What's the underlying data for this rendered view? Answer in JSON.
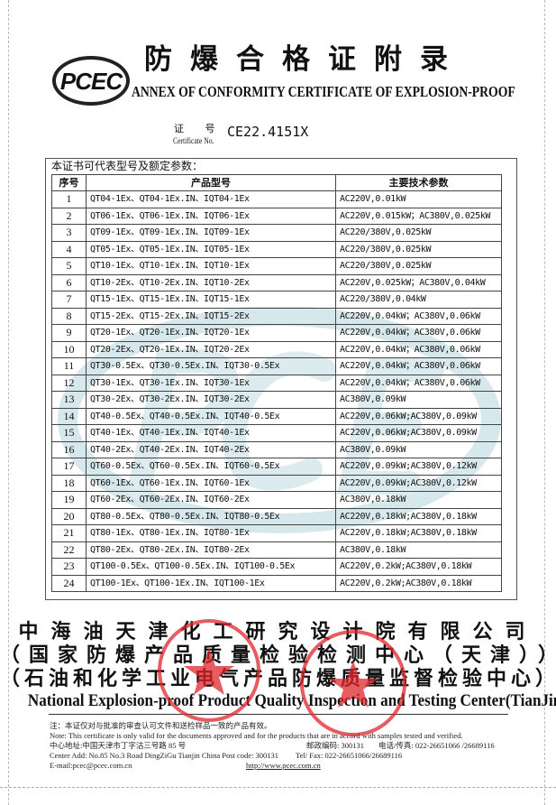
{
  "header": {
    "logo_text": "PCEC",
    "title_cn": "防爆合格证附录",
    "title_en": "ANNEX OF CONFORMITY CERTIFICATE OF EXPLOSION-PROOF",
    "cert_no_label_cn": "证 号",
    "cert_no_label_en": "Certificate No.",
    "cert_no": "CE22.4151X"
  },
  "table": {
    "caption": "本证书可代表型号及额定参数：",
    "columns": [
      "序号",
      "产品型号",
      "主要技术参数"
    ],
    "rows": [
      {
        "no": "1",
        "model": "QT04-1Ex、QT04-1Ex.IN、IQT04-1Ex",
        "params": "AC220V,0.01kW"
      },
      {
        "no": "2",
        "model": "QT06-1Ex、QT06-1Ex.IN、IQT06-1Ex",
        "params": "AC220V,0.015kW；AC380V,0.025kW"
      },
      {
        "no": "3",
        "model": "QT09-1Ex、QT09-1Ex.IN、IQT09-1Ex",
        "params": "AC220/380V,0.025kW"
      },
      {
        "no": "4",
        "model": "QT05-1Ex、QT05-1Ex.IN、IQT05-1Ex",
        "params": "AC220/380V,0.025kW"
      },
      {
        "no": "5",
        "model": "QT10-1Ex、QT10-1Ex.IN、IQT10-1Ex",
        "params": "AC220/380V,0.025kW"
      },
      {
        "no": "6",
        "model": "QT10-2Ex、QT10-2Ex.IN、IQT10-2Ex",
        "params": "AC220V,0.025kW；AC380V,0.04kW"
      },
      {
        "no": "7",
        "model": "QT15-1Ex、QT15-1Ex.IN、IQT15-1Ex",
        "params": "AC220/380V,0.04kW"
      },
      {
        "no": "8",
        "model": "QT15-2Ex、QT15-2Ex.IN、IQT15-2Ex",
        "params": "AC220V,0.04kW；AC380V,0.06kW"
      },
      {
        "no": "9",
        "model": "QT20-1Ex、QT20-1Ex.IN、IQT20-1Ex",
        "params": "AC220V,0.04kW；AC380V,0.06kW"
      },
      {
        "no": "10",
        "model": "QT20-2Ex、QT20-1Ex.IN、IQT20-2Ex",
        "params": "AC220V,0.04kW；AC380V,0.06kW"
      },
      {
        "no": "11",
        "model": "QT30-0.5Ex、QT30-0.5Ex.IN、IQT30-0.5Ex",
        "params": "AC220V,0.04kW；AC380V,0.06kW"
      },
      {
        "no": "12",
        "model": "QT30-1Ex、QT30-1Ex.IN、IQT30-1Ex",
        "params": "AC220V,0.04kW；AC380V,0.06kW"
      },
      {
        "no": "13",
        "model": "QT30-2Ex、QT30-2Ex.IN、IQT30-2Ex",
        "params": "AC380V,0.09kW"
      },
      {
        "no": "14",
        "model": "QT40-0.5Ex、QT40-0.5Ex.IN、IQT40-0.5Ex",
        "params": "AC220V,0.06kW;AC380V,0.09kW"
      },
      {
        "no": "15",
        "model": "QT40-1Ex、QT40-1Ex.IN、IQT40-1Ex",
        "params": "AC220V,0.06kW;AC380V,0.09kW"
      },
      {
        "no": "16",
        "model": "QT40-2Ex、QT40-2Ex.IN、IQT40-2Ex",
        "params": "AC380V,0.09kW"
      },
      {
        "no": "17",
        "model": "QT60-0.5Ex、QT60-0.5Ex.IN、IQT60-0.5Ex",
        "params": "AC220V,0.09kW;AC380V,0.12kW"
      },
      {
        "no": "18",
        "model": "QT60-1Ex、QT60-1Ex.IN、IQT60-1Ex",
        "params": "AC220V,0.09kW;AC380V,0.12kW"
      },
      {
        "no": "19",
        "model": "QT60-2Ex、QT60-2Ex.IN、IQT60-2Ex",
        "params": "AC380V,0.18kW"
      },
      {
        "no": "20",
        "model": "QT80-0.5Ex、QT80-0.5Ex.IN、IQT80-0.5Ex",
        "params": "AC220V,0.18kW;AC380V,0.18kW"
      },
      {
        "no": "21",
        "model": "QT80-1Ex、QT80-1Ex.IN、IQT80-1Ex",
        "params": "AC220V,0.18kW;AC380V,0.18kW"
      },
      {
        "no": "22",
        "model": "QT80-2Ex、QT80-2Ex.IN、IQT80-2Ex",
        "params": "AC380V,0.18kW"
      },
      {
        "no": "23",
        "model": "QT100-0.5Ex、QT100-0.5Ex.IN、IQT100-0.5Ex",
        "params": "AC220V,0.2kW;AC380V,0.18kW"
      },
      {
        "no": "24",
        "model": "QT100-1Ex、QT100-1Ex.IN、IQT100-1Ex",
        "params": "AC220V,0.2kW;AC380V,0.18kW"
      }
    ]
  },
  "watermark_text": "PCEC",
  "footer": {
    "org_line1": "中海油天津化工研究设计院有限公司",
    "org_line2": "（国家防爆产品质量检验检测中心（天津））",
    "org_line3": "（石油和化学工业电气产品防爆质量监督检验中心）",
    "org_en": "National Explosion-proof Product Quality Inspection and Testing Center(TianJin)",
    "note_cn": "注：本证仅对与批准的审查认可文件和送检样品一致的产品有效。",
    "note_en": "Note: This certificate is only valid for the documents approved and for the products that are in accord with samples tested and verified.",
    "address_cn": "中心地址:中国天津市丁字沽三号路 85 号",
    "postcode_cn": "邮政编码: 300131",
    "phone_cn": "电话/传真: 022-26651066 /26689116",
    "address_en": "Center Add: No.85 No.3 Road DingZiGu Tianjin China Post code: 300131",
    "phone_en": "Tel/ Fax: 022-26651066/26689116",
    "email": "E-mail:pcec@pcec.com.cn",
    "website": "http://www.pcec.com.cn"
  },
  "stamps": [
    {
      "text": "中海油天津化工研究设计院有限公司 防爆检验检测专用章",
      "color": "#e0262b"
    },
    {
      "text": "国家防爆产品质量检验检测中心",
      "color": "#e0262b"
    }
  ],
  "colors": {
    "watermark": "#cfe3e8",
    "stamp": "#e0262b"
  }
}
